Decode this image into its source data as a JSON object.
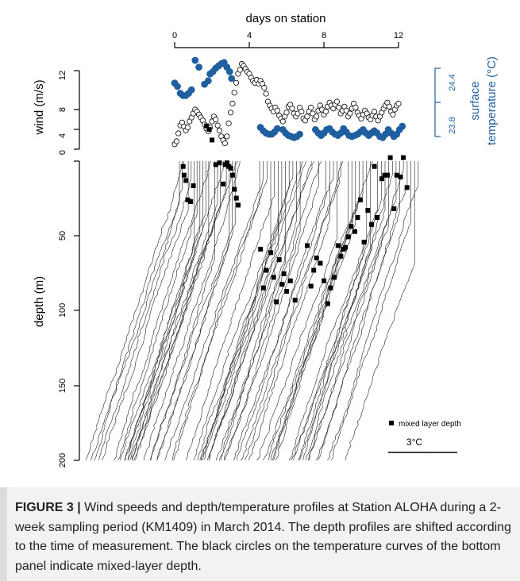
{
  "chart_data": [
    {
      "type": "scatter",
      "panel": "top",
      "xlabel": "days on station",
      "x_ticks": [
        "0",
        "4",
        "8",
        "12"
      ],
      "xlim": [
        0,
        12
      ],
      "ylabel_left": "wind (m/s)",
      "y_ticks_left": [
        "0",
        "4",
        "8",
        "12"
      ],
      "ylim_left": [
        4,
        13
      ],
      "ylabel_right": "surface temperature (°C)",
      "ylabel_right_line1": "surface",
      "ylabel_right_line2": "temperature  (°C)",
      "y_ticks_right": [
        "23.8",
        "24.4"
      ],
      "ylim_right": [
        23.7,
        24.6
      ],
      "series": [
        {
          "marker": "open-circle",
          "color": "#000000",
          "axis": "left",
          "x": [
            0.0,
            0.1,
            0.2,
            0.3,
            0.4,
            0.5,
            0.6,
            0.7,
            0.8,
            0.9,
            1.0,
            1.1,
            1.2,
            1.3,
            1.4,
            1.5,
            1.6,
            1.7,
            1.8,
            1.9,
            2.0,
            2.1,
            2.2,
            2.3,
            2.4,
            2.5,
            2.6,
            2.7,
            2.8,
            2.9,
            3.0,
            3.1,
            3.2,
            3.3,
            3.4,
            3.5,
            3.6,
            3.7,
            3.8,
            3.9,
            4.0,
            4.1,
            4.2,
            4.3,
            4.4,
            4.5,
            4.6,
            4.7,
            4.8,
            4.9,
            5.0,
            5.1,
            5.2,
            5.3,
            5.4,
            5.5,
            5.6,
            5.7,
            5.8,
            5.9,
            6.0,
            6.1,
            6.2,
            6.3,
            6.4,
            6.5,
            6.6,
            6.7,
            6.8,
            6.9,
            7.0,
            7.1,
            7.2,
            7.3,
            7.4,
            7.5,
            7.6,
            7.7,
            7.8,
            7.9,
            8.0,
            8.1,
            8.2,
            8.3,
            8.4,
            8.5,
            8.6,
            8.7,
            8.8,
            8.9,
            9.0,
            9.1,
            9.2,
            9.3,
            9.4,
            9.5,
            9.6,
            9.7,
            9.8,
            9.9,
            10.0,
            10.1,
            10.2,
            10.3,
            10.4,
            10.5,
            10.6,
            10.7,
            10.8,
            10.9,
            11.0,
            11.1,
            11.2,
            11.3,
            11.4,
            11.5,
            11.6,
            11.7,
            11.8,
            11.9,
            12.0
          ],
          "y": [
            4.5,
            4.8,
            5.6,
            6.4,
            6.7,
            6.3,
            5.9,
            6.2,
            6.8,
            7.2,
            7.6,
            8.0,
            7.8,
            7.5,
            7.2,
            6.9,
            6.5,
            6.1,
            5.8,
            6.2,
            6.8,
            7.3,
            7.0,
            6.4,
            5.9,
            5.3,
            4.9,
            4.6,
            5.3,
            6.6,
            7.7,
            8.6,
            9.7,
            10.7,
            11.6,
            12.0,
            12.6,
            12.4,
            12.1,
            11.8,
            11.6,
            11.2,
            10.9,
            10.7,
            11.0,
            10.6,
            10.9,
            10.6,
            10.2,
            9.6,
            8.8,
            8.4,
            8.1,
            7.8,
            8.2,
            7.9,
            7.4,
            7.1,
            6.8,
            7.3,
            7.7,
            8.3,
            8.5,
            8.1,
            7.6,
            7.3,
            7.6,
            8.2,
            7.8,
            7.1,
            6.9,
            7.3,
            7.8,
            8.2,
            7.6,
            7.0,
            7.3,
            7.9,
            8.4,
            8.0,
            7.5,
            7.8,
            8.3,
            8.7,
            8.4,
            8.1,
            8.5,
            8.8,
            8.2,
            7.6,
            7.9,
            8.3,
            7.9,
            7.3,
            7.6,
            8.1,
            8.6,
            8.2,
            7.7,
            7.4,
            7.1,
            7.5,
            7.9,
            7.6,
            7.2,
            7.0,
            7.4,
            7.8,
            7.3,
            6.9,
            7.3,
            7.7,
            8.1,
            8.4,
            8.7,
            8.3,
            7.8,
            7.5,
            8.0,
            8.4,
            8.6
          ]
        },
        {
          "marker": "filled-circle",
          "color": "#1f5f9f",
          "axis": "right",
          "x": [
            0.0,
            0.15,
            0.3,
            0.45,
            0.6,
            0.75,
            0.9,
            1.1,
            1.3,
            1.6,
            1.8,
            1.9,
            2.05,
            2.2,
            2.35,
            2.5,
            2.65,
            2.8,
            2.95,
            3.05,
            4.6,
            4.75,
            4.9,
            5.05,
            5.2,
            5.35,
            5.5,
            5.8,
            5.95,
            6.1,
            6.25,
            6.4,
            6.55,
            6.7,
            7.55,
            7.7,
            7.85,
            8.0,
            8.15,
            8.3,
            8.45,
            8.6,
            8.75,
            8.9,
            9.05,
            9.2,
            9.35,
            9.5,
            9.65,
            9.8,
            9.95,
            10.1,
            10.25,
            10.4,
            10.55,
            10.7,
            10.85,
            11.0,
            11.15,
            11.3,
            11.45,
            11.6,
            11.75,
            11.9,
            12.05,
            12.2
          ],
          "y": [
            24.27,
            24.24,
            24.18,
            24.16,
            24.16,
            24.18,
            24.21,
            24.47,
            24.41,
            24.26,
            24.29,
            24.35,
            24.37,
            24.4,
            24.42,
            24.44,
            24.45,
            24.41,
            24.37,
            24.31,
            23.88,
            23.85,
            23.83,
            23.82,
            23.82,
            23.84,
            23.87,
            23.86,
            23.83,
            23.81,
            23.8,
            23.79,
            23.8,
            23.82,
            23.86,
            23.83,
            23.81,
            23.83,
            23.86,
            23.87,
            23.84,
            23.82,
            23.81,
            23.83,
            23.87,
            23.84,
            23.81,
            23.8,
            23.81,
            23.82,
            23.84,
            23.86,
            23.83,
            23.81,
            23.83,
            23.85,
            23.83,
            23.8,
            23.79,
            23.82,
            23.86,
            23.83,
            23.8,
            23.82,
            23.86,
            23.89
          ]
        }
      ]
    },
    {
      "type": "line",
      "panel": "bottom",
      "ylabel": "depth (m)",
      "y_ticks": [
        "50",
        "100",
        "150",
        "200"
      ],
      "ylim": [
        200,
        0
      ],
      "legend": "mixed layer depth",
      "legend_placement": "bottom-right",
      "scale_label": "3°C",
      "profile_groups": [
        {
          "start_day": 0.0,
          "end_day": 3.3,
          "count": 22
        },
        {
          "start_day": 4.3,
          "end_day": 12.8,
          "count": 44
        }
      ],
      "mixed_layer_depth_markers": {
        "x_day": [
          0.2,
          0.25,
          0.35,
          0.45,
          0.6,
          0.75,
          1.45,
          1.6,
          1.75,
          1.95,
          2.15,
          2.35,
          2.45,
          2.55,
          2.65,
          2.75,
          2.85,
          2.95,
          3.05,
          3.15,
          4.35,
          4.5,
          4.65,
          4.9,
          5.05,
          5.2,
          5.35,
          5.5,
          5.6,
          5.75,
          5.95,
          6.2,
          6.85,
          7.05,
          7.2,
          7.35,
          7.55,
          7.75,
          7.95,
          8.1,
          8.3,
          8.5,
          8.65,
          8.8,
          8.9,
          9.05,
          9.2,
          9.4,
          9.55,
          9.7,
          9.9,
          10.1,
          10.3,
          10.45,
          10.6,
          10.85,
          11.0,
          11.15,
          11.3,
          11.5,
          11.65,
          11.85,
          12.0,
          12.2
        ],
        "depth_m": [
          33,
          38,
          41,
          52,
          53,
          44,
          10,
          12,
          18,
          32,
          31,
          43,
          32,
          31,
          33,
          34,
          38,
          46,
          51,
          55,
          80,
          102,
          92,
          82,
          96,
          110,
          86,
          100,
          94,
          104,
          98,
          109,
          78,
          101,
          92,
          85,
          88,
          98,
          111,
          102,
          96,
          78,
          84,
          80,
          79,
          73,
          67,
          70,
          62,
          52,
          76,
          58,
          66,
          33,
          62,
          40,
          38,
          38,
          28,
          57,
          38,
          39,
          28,
          45
        ]
      }
    }
  ],
  "caption": {
    "label": "FIGURE 3 |",
    "text": " Wind speeds and depth/temperature profiles at Station ALOHA during a 2-week sampling period (KM1409) in March 2014. The depth profiles are shifted according to the time of measurement. The black circles on the temperature curves of the bottom panel indicate mixed-layer depth."
  }
}
